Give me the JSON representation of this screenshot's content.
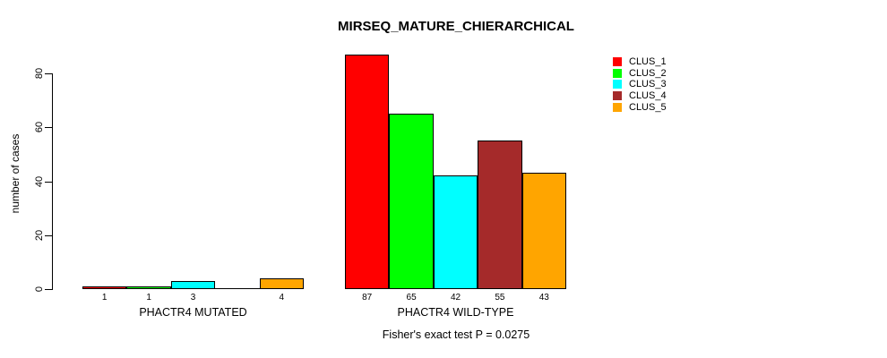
{
  "chart_data": {
    "type": "bar",
    "title": "MIRSEQ_MATURE_CHIERARCHICAL",
    "ylabel": "number of cases",
    "xlabel": "",
    "ylim": [
      0,
      80
    ],
    "yticks": [
      0,
      20,
      40,
      60,
      80
    ],
    "grid": false,
    "legend_position": "top-right",
    "categories": [
      "PHACTR4 MUTATED",
      "PHACTR4 WILD-TYPE"
    ],
    "series": [
      {
        "name": "CLUS_1",
        "color": "#FF0000",
        "values": [
          1,
          87
        ]
      },
      {
        "name": "CLUS_2",
        "color": "#00FF00",
        "values": [
          1,
          65
        ]
      },
      {
        "name": "CLUS_3",
        "color": "#00FFFF",
        "values": [
          3,
          42
        ]
      },
      {
        "name": "CLUS_4",
        "color": "#A52A2A",
        "values": [
          0,
          55
        ]
      },
      {
        "name": "CLUS_5",
        "color": "#FFA500",
        "values": [
          4,
          43
        ]
      }
    ],
    "bar_value_labels_shown": true,
    "footnote": "Fisher's exact test P = 0.0275"
  }
}
